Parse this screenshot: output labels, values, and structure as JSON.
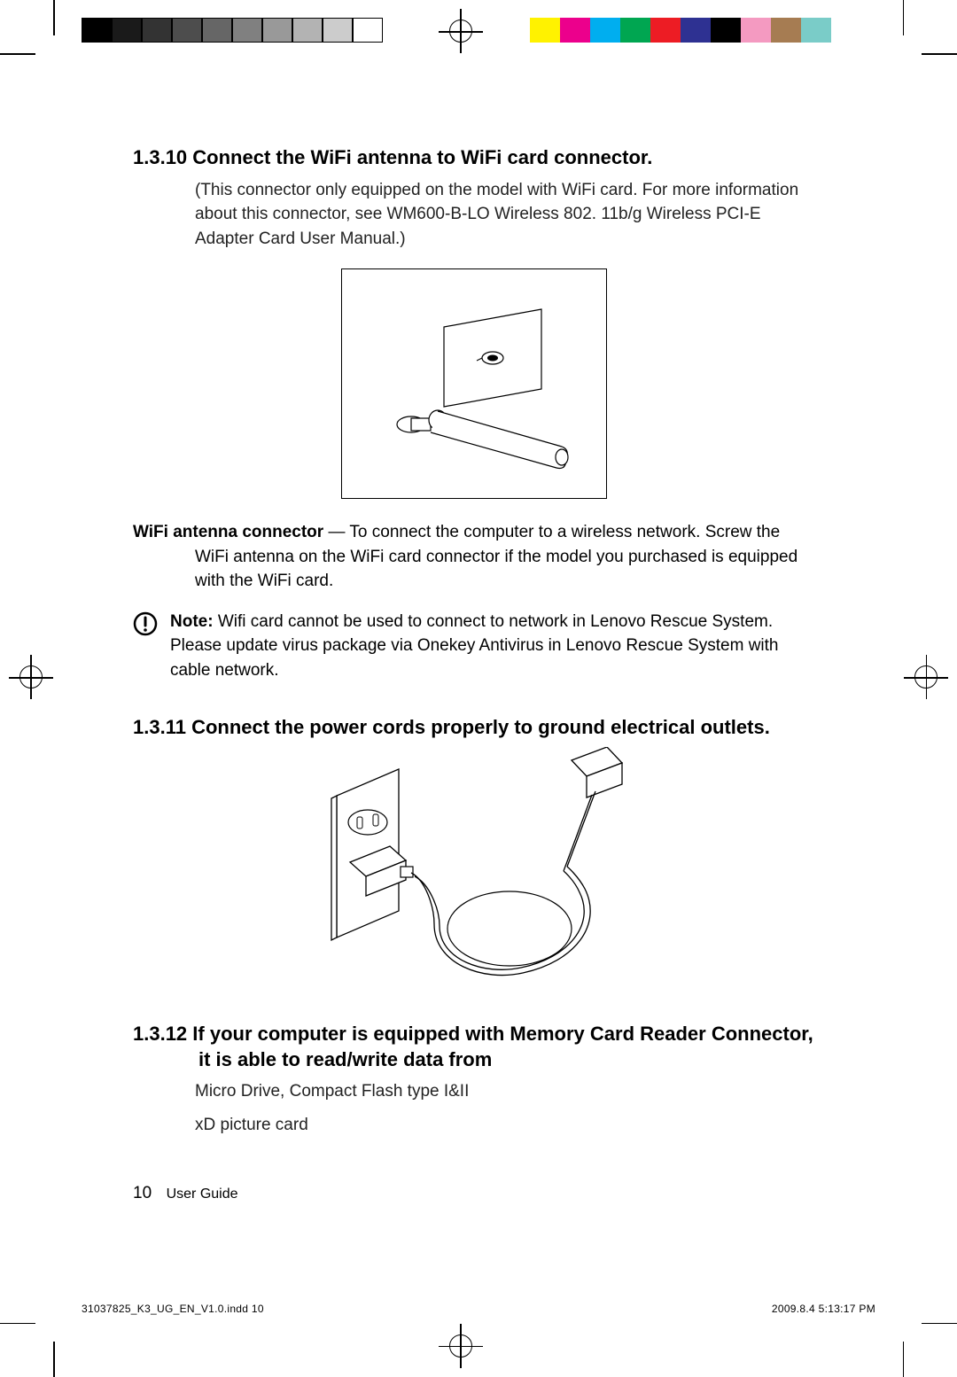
{
  "reg": {
    "gray_bar_colors": [
      "#000000",
      "#1a1a1a",
      "#333333",
      "#4d4d4d",
      "#666666",
      "#808080",
      "#999999",
      "#b3b3b3",
      "#cccccc",
      "#ffffff"
    ],
    "color_bar_colors": [
      "#fff200",
      "#ec008c",
      "#00aeef",
      "#00a651",
      "#ed1c24",
      "#2e3192",
      "#000000",
      "#f49ac1",
      "#a67c52",
      "#7accc8"
    ]
  },
  "s1": {
    "heading": "1.3.10 Connect the WiFi antenna to WiFi card connector.",
    "para": "(This connector only equipped on the model with WiFi card. For more information about this connector, see WM600-B-LO Wireless 802. 11b/g Wireless PCI-E Adapter Card User Manual.)",
    "defn_term": "WiFi antenna connector",
    "defn_rest": " — To connect the computer to a wireless network. Screw the WiFi antenna on the WiFi card connector if the model you purchased is equipped with the WiFi card.",
    "note_label": "Note:",
    "note_body": " Wifi card cannot be used to connect to network in Lenovo Rescue System. Please update virus package via Onekey Antivirus in Lenovo Rescue System with cable network."
  },
  "s2": {
    "heading": "1.3.11 Connect the power cords properly to ground electrical outlets."
  },
  "s3": {
    "heading": "1.3.12 If your computer is equipped with Memory Card Reader Connector, it is able to read/write data from",
    "line1": "Micro Drive, Compact Flash type I&II",
    "line2": "xD picture card"
  },
  "footer": {
    "page_num": "10",
    "book": "User Guide",
    "slug_left": "31037825_K3_UG_EN_V1.0.indd   10",
    "slug_right": "2009.8.4   5:13:17 PM"
  }
}
